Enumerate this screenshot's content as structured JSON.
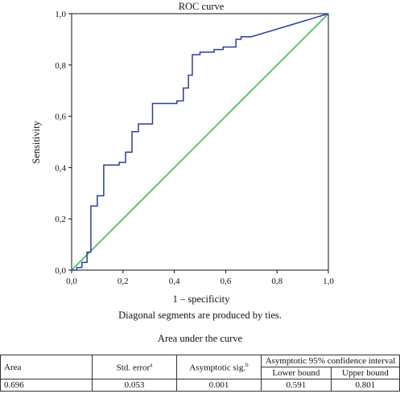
{
  "chart_data": {
    "type": "line",
    "title": "ROC curve",
    "xlabel": "1 – specificity",
    "ylabel": "Sensitivity",
    "xlim": [
      0,
      1
    ],
    "ylim": [
      0,
      1
    ],
    "x_ticks": [
      "0,0",
      "0,2",
      "0,4",
      "0,6",
      "0,8",
      "1,0"
    ],
    "y_ticks": [
      "0,0",
      "0,2",
      "0,4",
      "0,6",
      "0,8",
      "1,0"
    ],
    "grid": false,
    "series": [
      {
        "color": "#2b3f93",
        "points": [
          [
            0,
            0
          ],
          [
            0.02,
            0
          ],
          [
            0.02,
            0.01
          ],
          [
            0.04,
            0.01
          ],
          [
            0.04,
            0.03
          ],
          [
            0.06,
            0.03
          ],
          [
            0.06,
            0.07
          ],
          [
            0.075,
            0.07
          ],
          [
            0.075,
            0.25
          ],
          [
            0.1,
            0.25
          ],
          [
            0.1,
            0.29
          ],
          [
            0.125,
            0.29
          ],
          [
            0.125,
            0.41
          ],
          [
            0.185,
            0.41
          ],
          [
            0.185,
            0.42
          ],
          [
            0.21,
            0.42
          ],
          [
            0.21,
            0.46
          ],
          [
            0.235,
            0.46
          ],
          [
            0.235,
            0.54
          ],
          [
            0.26,
            0.54
          ],
          [
            0.26,
            0.57
          ],
          [
            0.315,
            0.57
          ],
          [
            0.315,
            0.65
          ],
          [
            0.41,
            0.65
          ],
          [
            0.41,
            0.66
          ],
          [
            0.435,
            0.66
          ],
          [
            0.435,
            0.71
          ],
          [
            0.455,
            0.71
          ],
          [
            0.455,
            0.76
          ],
          [
            0.47,
            0.76
          ],
          [
            0.47,
            0.84
          ],
          [
            0.5,
            0.84
          ],
          [
            0.5,
            0.85
          ],
          [
            0.555,
            0.85
          ],
          [
            0.555,
            0.86
          ],
          [
            0.59,
            0.86
          ],
          [
            0.59,
            0.87
          ],
          [
            0.64,
            0.87
          ],
          [
            0.64,
            0.9
          ],
          [
            0.66,
            0.9
          ],
          [
            0.66,
            0.91
          ],
          [
            0.7,
            0.91
          ],
          [
            1,
            1
          ]
        ]
      },
      {
        "color": "#27b34a",
        "points": [
          [
            0,
            0
          ],
          [
            1,
            1
          ]
        ]
      }
    ]
  },
  "caption": "Diagonal segments are produced by ties.",
  "table": {
    "title": "Area under the curve",
    "headers": {
      "area": "Area",
      "std_error": "Std. error",
      "std_error_sup": "a",
      "asym_sig": "Asymptotic sig.",
      "asym_sig_sup": "b",
      "ci": "Asymptotic 95% confidence interval",
      "lower": "Lower bound",
      "upper": "Upper bound"
    },
    "row": {
      "area": "0.696",
      "std_error": "0.053",
      "asym_sig": "0.001",
      "lower": "0.591",
      "upper": "0.801"
    }
  }
}
